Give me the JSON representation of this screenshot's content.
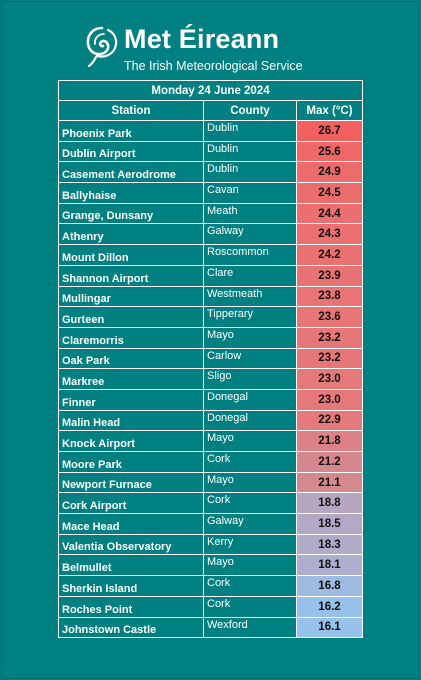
{
  "header": {
    "brand": "Met Éireann",
    "tagline": "The Irish Meteorological Service"
  },
  "table": {
    "title": "Monday 24 June 2024",
    "columns": [
      "Station",
      "County",
      "Max (°C)"
    ],
    "rows": [
      {
        "station": "Phoenix Park",
        "county": "Dublin",
        "max": "26.7",
        "color": "#f26060"
      },
      {
        "station": "Dublin Airport",
        "county": "Dublin",
        "max": "25.6",
        "color": "#ee6868"
      },
      {
        "station": "Casement Aerodrome",
        "county": "Dublin",
        "max": "24.9",
        "color": "#ec6c6c"
      },
      {
        "station": "Ballyhaise",
        "county": "Cavan",
        "max": "24.5",
        "color": "#eb6e6f"
      },
      {
        "station": "Grange, Dunsany",
        "county": "Meath",
        "max": "24.4",
        "color": "#eb6f70"
      },
      {
        "station": "Athenry",
        "county": "Galway",
        "max": "24.3",
        "color": "#ea7071"
      },
      {
        "station": "Mount Dillon",
        "county": "Roscommon",
        "max": "24.2",
        "color": "#ea7172"
      },
      {
        "station": "Shannon Airport",
        "county": "Clare",
        "max": "23.9",
        "color": "#e97374"
      },
      {
        "station": "Mullingar",
        "county": "Westmeath",
        "max": "23.8",
        "color": "#e87475"
      },
      {
        "station": "Gurteen",
        "county": "Tipperary",
        "max": "23.6",
        "color": "#e87576"
      },
      {
        "station": "Claremorris",
        "county": "Mayo",
        "max": "23.2",
        "color": "#e67779"
      },
      {
        "station": "Oak Park",
        "county": "Carlow",
        "max": "23.2",
        "color": "#e67779"
      },
      {
        "station": "Markree",
        "county": "Sligo",
        "max": "23.0",
        "color": "#e5797a"
      },
      {
        "station": "Finner",
        "county": "Donegal",
        "max": "23.0",
        "color": "#e5797a"
      },
      {
        "station": "Malin Head",
        "county": "Donegal",
        "max": "22.9",
        "color": "#e47a7b"
      },
      {
        "station": "Knock Airport",
        "county": "Mayo",
        "max": "21.8",
        "color": "#dc8185"
      },
      {
        "station": "Moore Park",
        "county": "Cork",
        "max": "21.2",
        "color": "#d6878d"
      },
      {
        "station": "Newport Furnace",
        "county": "Mayo",
        "max": "21.1",
        "color": "#d4898f"
      },
      {
        "station": "Cork Airport",
        "county": "Cork",
        "max": "18.8",
        "color": "#b7a6c0"
      },
      {
        "station": "Mace Head",
        "county": "Galway",
        "max": "18.5",
        "color": "#b3a9c6"
      },
      {
        "station": "Valentia Observatory",
        "county": "Kerry",
        "max": "18.3",
        "color": "#b0abc9"
      },
      {
        "station": "Belmullet",
        "county": "Mayo",
        "max": "18.1",
        "color": "#adaecd"
      },
      {
        "station": "Sherkin Island",
        "county": "Cork",
        "max": "16.8",
        "color": "#9fbbe0"
      },
      {
        "station": "Roches Point",
        "county": "Cork",
        "max": "16.2",
        "color": "#98c1ea"
      },
      {
        "station": "Johnstown Castle",
        "county": "Wexford",
        "max": "16.1",
        "color": "#97c2ec"
      }
    ]
  }
}
